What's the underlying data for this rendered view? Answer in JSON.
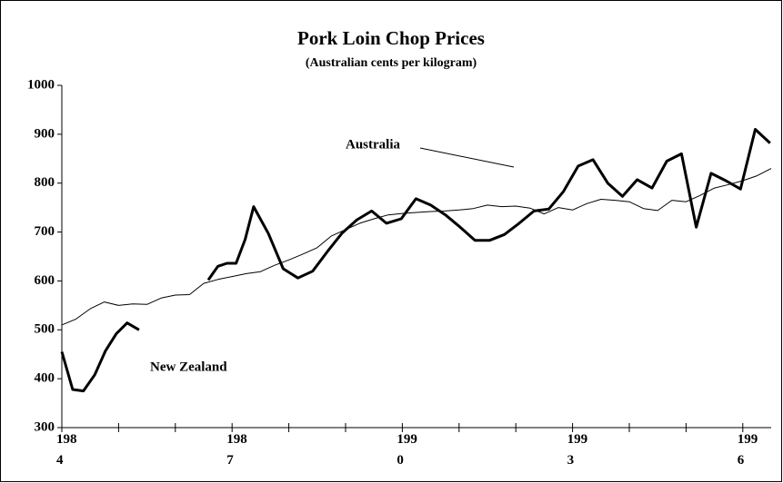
{
  "chart_data": {
    "type": "line",
    "title": "Pork Loin Chop Prices",
    "subtitle": "(Australian cents per kilogram)",
    "ylim": [
      300,
      1000
    ],
    "yticks": [
      300,
      400,
      500,
      600,
      700,
      800,
      900,
      1000
    ],
    "xlim": [
      1984,
      1996.5
    ],
    "xticks": [
      1984,
      1987,
      1990,
      1993,
      1996
    ],
    "x_minor_ticks": [
      1985,
      1986,
      1988,
      1989,
      1991,
      1992,
      1994,
      1995
    ],
    "series": [
      {
        "name": "Australia",
        "color": "#000000",
        "width": 1,
        "x": [
          1984,
          1984.25,
          1984.5,
          1984.75,
          1985,
          1985.25,
          1985.5,
          1985.75,
          1986,
          1986.25,
          1986.5,
          1986.75,
          1987,
          1987.25,
          1987.5,
          1987.75,
          1988,
          1988.25,
          1988.5,
          1988.75,
          1989,
          1989.25,
          1989.5,
          1989.75,
          1990,
          1990.25,
          1990.5,
          1990.75,
          1991,
          1991.25,
          1991.5,
          1991.75,
          1992,
          1992.25,
          1992.5,
          1992.75,
          1993,
          1993.25,
          1993.5,
          1993.75,
          1994,
          1994.25,
          1994.5,
          1994.75,
          1995,
          1995.25,
          1995.5,
          1995.75,
          1996,
          1996.25,
          1996.5
        ],
        "values": [
          510,
          522,
          543,
          557,
          550,
          553,
          552,
          565,
          571,
          572,
          595,
          603,
          609,
          615,
          619,
          632,
          643,
          655,
          668,
          692,
          705,
          718,
          727,
          735,
          738,
          740,
          742,
          743,
          745,
          748,
          755,
          752,
          753,
          749,
          737,
          750,
          745,
          758,
          767,
          765,
          762,
          748,
          744,
          765,
          762,
          775,
          790,
          797,
          805,
          815,
          830
        ]
      },
      {
        "name": "New Zealand",
        "color": "#000000",
        "width": 3,
        "x": [
          1984,
          1984.19,
          1984.38,
          1984.58,
          1984.77,
          1984.96,
          1985.15,
          1985.36,
          1986,
          1986.58,
          1986.75,
          1986.91,
          1987.07,
          1987.23,
          1987.38,
          1987.64,
          1987.9,
          1988.16,
          1988.42,
          1988.68,
          1988.94,
          1989.2,
          1989.46,
          1989.72,
          1989.98,
          1990.24,
          1990.5,
          1990.76,
          1991.02,
          1991.28,
          1991.54,
          1991.8,
          1992.06,
          1992.32,
          1992.58,
          1992.84,
          1993.1,
          1993.36,
          1993.62,
          1993.88,
          1994.14,
          1994.4,
          1994.66,
          1994.92,
          1995.18,
          1995.44,
          1995.7,
          1995.96,
          1996.22,
          1996.48
        ],
        "values": [
          455,
          378,
          375,
          408,
          457,
          492,
          514,
          500,
          null,
          602,
          630,
          636,
          636,
          685,
          752,
          697,
          625,
          606,
          620,
          660,
          698,
          725,
          743,
          718,
          727,
          768,
          755,
          735,
          710,
          683,
          683,
          695,
          718,
          743,
          747,
          783,
          835,
          848,
          800,
          773,
          807,
          790,
          845,
          860,
          710,
          820,
          805,
          788,
          910,
          882
        ]
      }
    ]
  }
}
